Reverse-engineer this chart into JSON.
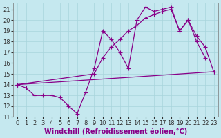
{
  "xlabel": "Windchill (Refroidissement éolien,°C)",
  "background_color": "#c5e8ef",
  "grid_color": "#a8d4dc",
  "line_color": "#880088",
  "xlim": [
    -0.5,
    23.5
  ],
  "ylim": [
    11,
    21.6
  ],
  "yticks": [
    11,
    12,
    13,
    14,
    15,
    16,
    17,
    18,
    19,
    20,
    21
  ],
  "xticks": [
    0,
    1,
    2,
    3,
    4,
    5,
    6,
    7,
    8,
    9,
    10,
    11,
    12,
    13,
    14,
    15,
    16,
    17,
    18,
    19,
    20,
    21,
    22,
    23
  ],
  "line1_x": [
    0,
    1,
    2,
    3,
    4,
    5,
    6,
    7,
    8,
    9,
    10,
    11,
    12,
    13,
    14,
    15,
    16,
    17,
    18,
    19,
    20,
    21,
    22
  ],
  "line1_y": [
    14.0,
    13.7,
    13.0,
    13.0,
    13.0,
    12.8,
    12.0,
    11.3,
    13.3,
    15.5,
    19.0,
    18.2,
    17.0,
    15.5,
    20.0,
    21.2,
    20.8,
    21.0,
    21.2,
    19.0,
    20.0,
    18.0,
    16.5
  ],
  "line2_x": [
    0,
    9,
    10,
    11,
    12,
    13,
    14,
    15,
    16,
    17,
    18,
    19,
    20,
    21,
    22,
    23
  ],
  "line2_y": [
    14.0,
    15.0,
    16.5,
    17.5,
    18.2,
    19.0,
    19.5,
    20.2,
    20.5,
    20.8,
    21.0,
    19.0,
    20.0,
    18.5,
    17.5,
    15.2
  ],
  "line3_x": [
    0,
    23
  ],
  "line3_y": [
    14.0,
    15.2
  ],
  "font_size": 7,
  "marker_size": 3,
  "linewidth": 0.9
}
